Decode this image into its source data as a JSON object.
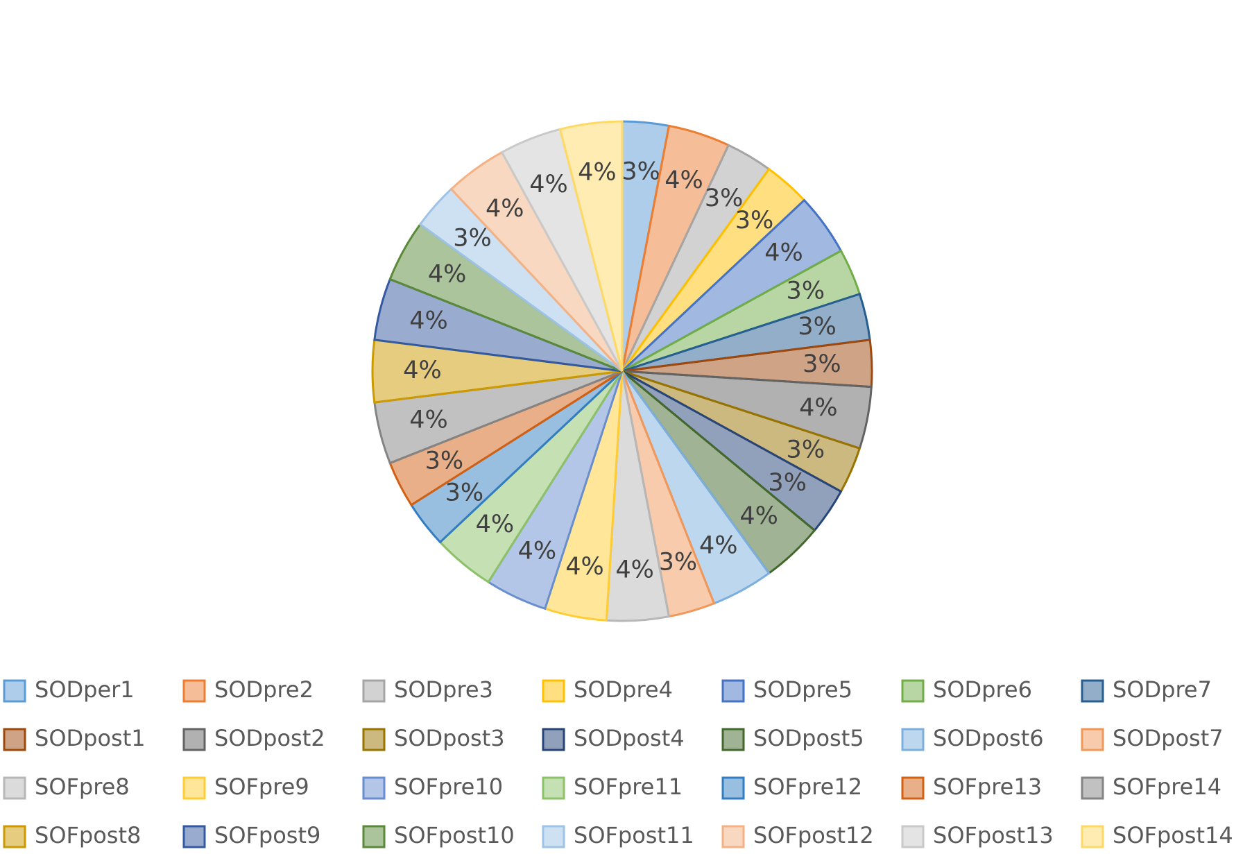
{
  "chart_data": {
    "type": "pie",
    "categories": [
      "SODper1",
      "SODpre2",
      "SODpre3",
      "SODpre4",
      "SODpre5",
      "SODpre6",
      "SODpre7",
      "SODpost1",
      "SODpost2",
      "SODpost3",
      "SODpost4",
      "SODpost5",
      "SODpost6",
      "SODpost7",
      "SOFpre8",
      "SOFpre9",
      "SOFpre10",
      "SOFpre11",
      "SOFpre12",
      "SOFpre13",
      "SOFpre14",
      "SOFpost8",
      "SOFpost9",
      "SOFpost10",
      "SOFpost11",
      "SOFpost12",
      "SOFpost13",
      "SOFpost14"
    ],
    "values": [
      3,
      4,
      3,
      3,
      4,
      3,
      3,
      3,
      4,
      3,
      3,
      4,
      4,
      3,
      4,
      4,
      4,
      4,
      3,
      3,
      4,
      4,
      4,
      4,
      3,
      4,
      4,
      4
    ],
    "value_labels": [
      "3%",
      "4%",
      "3%",
      "3%",
      "4%",
      "3%",
      "3%",
      "3%",
      "4%",
      "3%",
      "3%",
      "4%",
      "4%",
      "3%",
      "4%",
      "4%",
      "4%",
      "4%",
      "3%",
      "3%",
      "4%",
      "4%",
      "4%",
      "4%",
      "3%",
      "4%",
      "4%",
      "4%"
    ],
    "colors": [
      "#5b9bd5",
      "#ed7d31",
      "#a5a5a5",
      "#ffc000",
      "#4472c4",
      "#70ad47",
      "#255e91",
      "#9e480e",
      "#636363",
      "#997300",
      "#264478",
      "#43682b",
      "#7cafdd",
      "#f1975a",
      "#b7b7b7",
      "#ffcd33",
      "#698ed0",
      "#8cc168",
      "#327dc2",
      "#d26012",
      "#848484",
      "#cc9a00",
      "#335aa1",
      "#5a8a39",
      "#9dc3e6",
      "#f4b183",
      "#c9c9c9",
      "#ffd966"
    ],
    "legend": "bottom"
  }
}
